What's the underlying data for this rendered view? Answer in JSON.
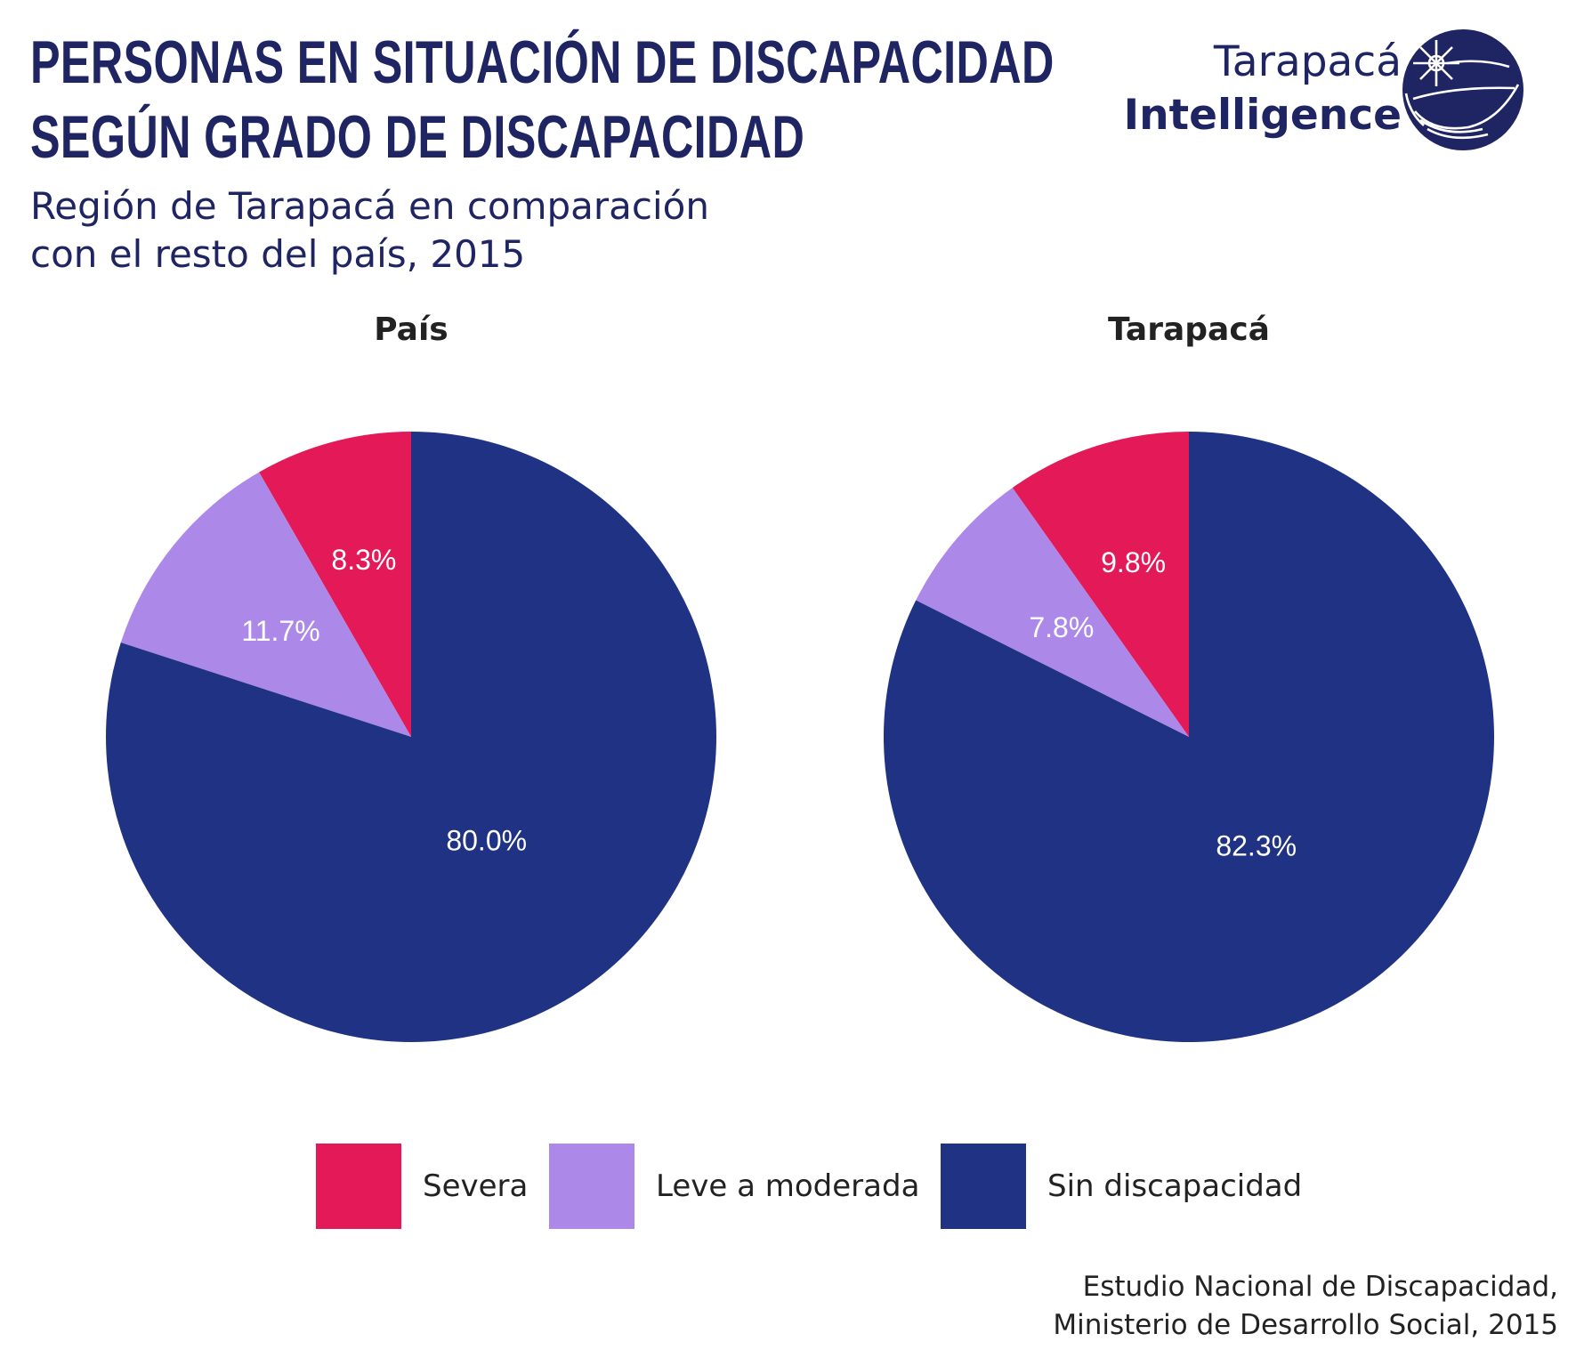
{
  "header": {
    "title_lines": [
      "PERSONAS EN SITUACIÓN DE DISCAPACIDAD",
      "SEGÚN GRADO DE DISCAPACIDAD"
    ],
    "subtitle_lines": [
      "Región de Tarapacá en comparación",
      "con el resto del país, 2015"
    ]
  },
  "logo": {
    "line1": "Tarapacá",
    "line2": "Intelligence",
    "icon": "compass-globe-logo-icon",
    "color": "#1f2463"
  },
  "chart_data": [
    {
      "type": "pie",
      "title": "País",
      "categories": [
        "Severa",
        "Leve a moderada",
        "Sin discapacidad"
      ],
      "values": [
        8.3,
        11.7,
        80.0
      ],
      "labels": [
        "8.3%",
        "11.7%",
        "80.0%"
      ],
      "colors": [
        "#e31a57",
        "#ac88e8",
        "#1f3283"
      ],
      "start_angle": "top, counterclockwise",
      "legend": "bottom"
    },
    {
      "type": "pie",
      "title": "Tarapacá",
      "categories": [
        "Severa",
        "Leve a moderada",
        "Sin discapacidad"
      ],
      "values": [
        9.8,
        7.8,
        82.3
      ],
      "labels": [
        "9.8%",
        "7.8%",
        "82.3%"
      ],
      "colors": [
        "#e31a57",
        "#ac88e8",
        "#1f3283"
      ],
      "start_angle": "top, counterclockwise",
      "legend": "bottom"
    }
  ],
  "legend": {
    "items": [
      {
        "label": "Severa",
        "color": "#e31a57"
      },
      {
        "label": "Leve a moderada",
        "color": "#ac88e8"
      },
      {
        "label": "Sin discapacidad",
        "color": "#1f3283"
      }
    ]
  },
  "source": {
    "lines": [
      "Estudio Nacional de Discapacidad,",
      "Ministerio de Desarrollo Social, 2015"
    ]
  }
}
